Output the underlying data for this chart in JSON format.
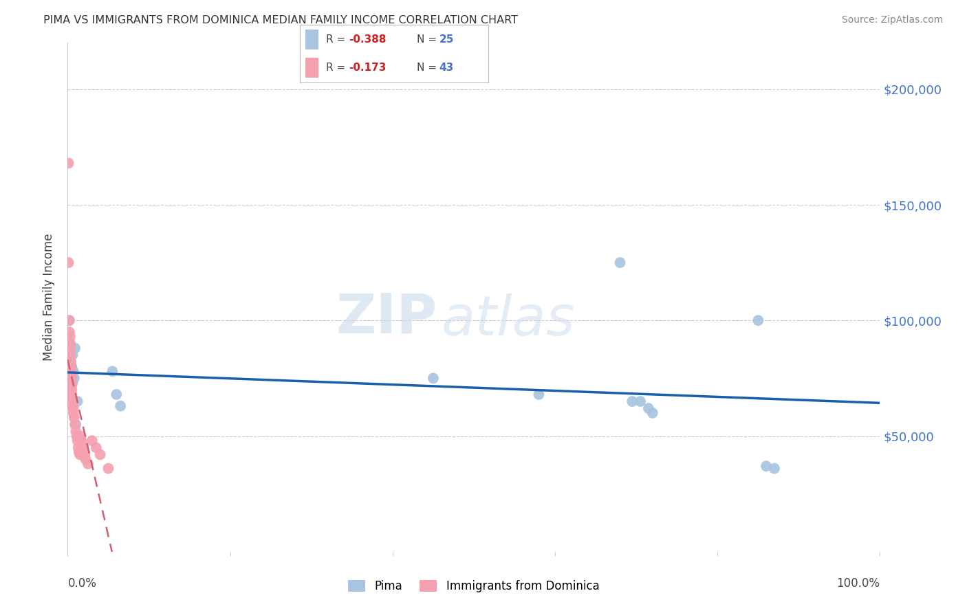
{
  "title": "PIMA VS IMMIGRANTS FROM DOMINICA MEDIAN FAMILY INCOME CORRELATION CHART",
  "source": "Source: ZipAtlas.com",
  "ylabel": "Median Family Income",
  "legend_label1": "Pima",
  "legend_label2": "Immigrants from Dominica",
  "r1": "-0.388",
  "n1": "25",
  "r2": "-0.173",
  "n2": "43",
  "pima_color": "#a8c4e0",
  "dominica_color": "#f4a0b0",
  "pima_line_color": "#1a5faa",
  "dominica_line_color": "#d06070",
  "background_color": "#ffffff",
  "watermark_zip": "ZIP",
  "watermark_atlas": "atlas",
  "pima_x": [
    0.002,
    0.003,
    0.004,
    0.005,
    0.005,
    0.006,
    0.006,
    0.007,
    0.008,
    0.009,
    0.01,
    0.012,
    0.055,
    0.06,
    0.065,
    0.45,
    0.58,
    0.68,
    0.695,
    0.705,
    0.715,
    0.72,
    0.85,
    0.86,
    0.87
  ],
  "pima_y": [
    100000,
    90000,
    82000,
    80000,
    68000,
    85000,
    73000,
    78000,
    75000,
    88000,
    55000,
    65000,
    78000,
    68000,
    63000,
    75000,
    68000,
    125000,
    65000,
    65000,
    62000,
    60000,
    100000,
    37000,
    36000
  ],
  "dominica_x": [
    0.001,
    0.001,
    0.002,
    0.002,
    0.003,
    0.003,
    0.003,
    0.003,
    0.004,
    0.004,
    0.004,
    0.004,
    0.005,
    0.005,
    0.005,
    0.005,
    0.005,
    0.006,
    0.006,
    0.006,
    0.006,
    0.007,
    0.007,
    0.008,
    0.009,
    0.01,
    0.011,
    0.012,
    0.013,
    0.014,
    0.015,
    0.016,
    0.017,
    0.018,
    0.019,
    0.02,
    0.021,
    0.022,
    0.025,
    0.03,
    0.035,
    0.04,
    0.05
  ],
  "dominica_y": [
    168000,
    125000,
    100000,
    95000,
    93000,
    90000,
    88000,
    85000,
    82000,
    80000,
    78000,
    73000,
    76000,
    72000,
    70000,
    68000,
    67000,
    66000,
    65000,
    65000,
    63000,
    62000,
    60000,
    58000,
    55000,
    52000,
    50000,
    48000,
    45000,
    43000,
    42000,
    50000,
    48000,
    46000,
    45000,
    43000,
    42000,
    40000,
    38000,
    48000,
    45000,
    42000,
    36000
  ],
  "xlim": [
    0,
    1.0
  ],
  "ylim": [
    0,
    220000
  ],
  "y_ticks": [
    50000,
    100000,
    150000,
    200000
  ],
  "x_ticks": [
    0.0,
    0.2,
    0.4,
    0.6,
    0.8,
    1.0
  ]
}
